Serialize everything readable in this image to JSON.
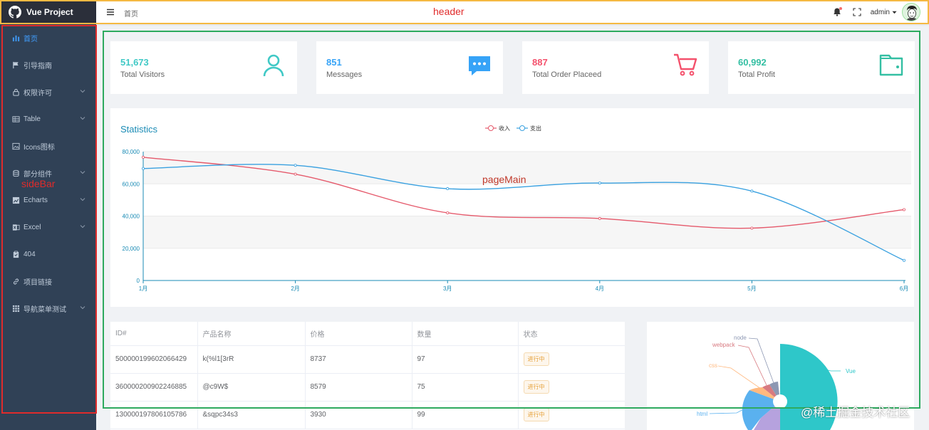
{
  "app": {
    "title": "Vue Project"
  },
  "sidebar": {
    "items": [
      {
        "label": "首页",
        "icon": "chart-bar-icon",
        "active": true,
        "has_children": false
      },
      {
        "label": "引导指南",
        "icon": "flag-icon",
        "active": false,
        "has_children": false
      },
      {
        "label": "权限许可",
        "icon": "lock-icon",
        "active": false,
        "has_children": true
      },
      {
        "label": "Table",
        "icon": "table-icon",
        "active": false,
        "has_children": true
      },
      {
        "label": "Icons图标",
        "icon": "image-icon",
        "active": false,
        "has_children": false
      },
      {
        "label": "部分组件",
        "icon": "database-icon",
        "active": false,
        "has_children": true
      },
      {
        "label": "Echarts",
        "icon": "chart-line-icon",
        "active": false,
        "has_children": true
      },
      {
        "label": "Excel",
        "icon": "excel-icon",
        "active": false,
        "has_children": true
      },
      {
        "label": "404",
        "icon": "clipboard-icon",
        "active": false,
        "has_children": false
      },
      {
        "label": "项目链接",
        "icon": "link-icon",
        "active": false,
        "has_children": false
      },
      {
        "label": "导航菜单测试",
        "icon": "grid-icon",
        "active": false,
        "has_children": true
      }
    ]
  },
  "header": {
    "breadcrumb": "首页",
    "username": "admin",
    "icons": [
      "hamburger-icon",
      "bell-icon",
      "fullscreen-icon",
      "caret-down-icon"
    ]
  },
  "cards": [
    {
      "value": "51,673",
      "label": "Total Visitors",
      "icon": "user-icon",
      "color": "#40c9c6"
    },
    {
      "value": "851",
      "label": "Messages",
      "icon": "message-icon",
      "color": "#36a3f7"
    },
    {
      "value": "887",
      "label": "Total Order Placeed",
      "icon": "shopping-cart-icon",
      "color": "#f4516c"
    },
    {
      "value": "60,992",
      "label": "Total Profit",
      "icon": "wallet-icon",
      "color": "#34bfa3"
    }
  ],
  "chart_data": [
    {
      "type": "line",
      "title": "Statistics",
      "categories": [
        "1月",
        "2月",
        "3月",
        "4月",
        "5月",
        "6月"
      ],
      "series": [
        {
          "name": "收入",
          "color": "#e5596b",
          "values": [
            76500,
            66000,
            42000,
            38500,
            32500,
            44000
          ]
        },
        {
          "name": "支出",
          "color": "#3aa1e0",
          "values": [
            69500,
            71500,
            57000,
            60500,
            55500,
            12500
          ]
        }
      ],
      "ylim": [
        0,
        80000
      ],
      "yticks": [
        "0",
        "20,000",
        "40,000",
        "60,000",
        "80,000"
      ],
      "legend": "top-center",
      "grid": true
    },
    {
      "type": "pie",
      "labels": [
        "Vue",
        "html",
        "css",
        "webpack",
        "node"
      ]
    }
  ],
  "table": {
    "columns": [
      "ID#",
      "产品名称",
      "价格",
      "数量",
      "状态"
    ],
    "rows": [
      [
        "500000199602066429",
        "k(%l1[3rR",
        "8737",
        "97",
        "进行中"
      ],
      [
        "360000200902246885",
        "@c9W$",
        "8579",
        "75",
        "进行中"
      ],
      [
        "130000197806105786",
        "&sqpc34s3",
        "3930",
        "99",
        "进行中"
      ]
    ]
  },
  "annotations": {
    "header": "header",
    "sidebar": "sideBar",
    "main": "pageMain"
  },
  "watermark": "@稀土掘金技术社区",
  "colors": {
    "sidebar_bg": "#304156",
    "sidebar_text": "#bfcbd9",
    "sidebar_active": "#409eff",
    "header_bg": "#ffffff",
    "page_bg": "#f0f2f5"
  }
}
